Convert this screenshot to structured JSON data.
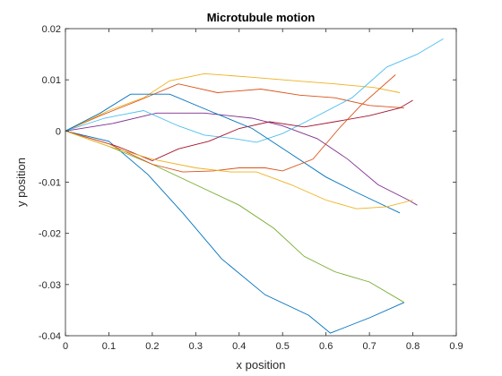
{
  "chart_data": {
    "type": "line",
    "title": "Microtubule motion",
    "xlabel": "x position",
    "ylabel": "y position",
    "xlim": [
      0,
      0.9
    ],
    "ylim": [
      -0.04,
      0.02
    ],
    "xticks": [
      "0",
      "0.1",
      "0.2",
      "0.3",
      "0.4",
      "0.5",
      "0.6",
      "0.7",
      "0.8",
      "0.9"
    ],
    "yticks": [
      "0.02",
      "0.01",
      "0",
      "-0.01",
      "-0.02",
      "-0.03",
      "-0.04"
    ],
    "xtick_values": [
      0,
      0.1,
      0.2,
      0.3,
      0.4,
      0.5,
      0.6,
      0.7,
      0.8,
      0.9
    ],
    "ytick_values": [
      0.02,
      0.01,
      0,
      -0.01,
      -0.02,
      -0.03,
      -0.04
    ],
    "grid": false,
    "series": [
      {
        "color": "#0072bd",
        "points": [
          [
            0,
            0
          ],
          [
            0.1,
            -0.002
          ],
          [
            0.19,
            -0.0085
          ],
          [
            0.27,
            -0.016
          ],
          [
            0.36,
            -0.025
          ],
          [
            0.46,
            -0.032
          ],
          [
            0.56,
            -0.036
          ],
          [
            0.61,
            -0.0395
          ],
          [
            0.7,
            -0.0365
          ],
          [
            0.78,
            -0.0335
          ]
        ]
      },
      {
        "color": "#d95319",
        "points": [
          [
            0,
            0
          ],
          [
            0.08,
            0.003
          ],
          [
            0.17,
            0.006
          ],
          [
            0.26,
            0.0092
          ],
          [
            0.35,
            0.0075
          ],
          [
            0.45,
            0.0082
          ],
          [
            0.54,
            0.007
          ],
          [
            0.62,
            0.0065
          ],
          [
            0.7,
            0.005
          ],
          [
            0.78,
            0.0045
          ]
        ]
      },
      {
        "color": "#edb120",
        "points": [
          [
            0,
            0
          ],
          [
            0.1,
            0.004
          ],
          [
            0.18,
            0.0065
          ],
          [
            0.24,
            0.0098
          ],
          [
            0.32,
            0.0112
          ],
          [
            0.43,
            0.0105
          ],
          [
            0.53,
            0.0098
          ],
          [
            0.62,
            0.0092
          ],
          [
            0.71,
            0.0085
          ],
          [
            0.77,
            0.0075
          ]
        ]
      },
      {
        "color": "#7e2f8e",
        "points": [
          [
            0,
            0
          ],
          [
            0.11,
            0.0015
          ],
          [
            0.21,
            0.0035
          ],
          [
            0.32,
            0.0035
          ],
          [
            0.43,
            0.0025
          ],
          [
            0.5,
            0.001
          ],
          [
            0.58,
            -0.0015
          ],
          [
            0.65,
            -0.0055
          ],
          [
            0.72,
            -0.0105
          ],
          [
            0.79,
            -0.0135
          ],
          [
            0.81,
            -0.0145
          ]
        ]
      },
      {
        "color": "#77ac30",
        "points": [
          [
            0,
            0
          ],
          [
            0.1,
            -0.003
          ],
          [
            0.2,
            -0.0065
          ],
          [
            0.3,
            -0.0105
          ],
          [
            0.4,
            -0.0145
          ],
          [
            0.48,
            -0.019
          ],
          [
            0.55,
            -0.0245
          ],
          [
            0.62,
            -0.0275
          ],
          [
            0.7,
            -0.0295
          ],
          [
            0.78,
            -0.0335
          ]
        ]
      },
      {
        "color": "#4dbeee",
        "points": [
          [
            0,
            0
          ],
          [
            0.09,
            0.0025
          ],
          [
            0.18,
            0.004
          ],
          [
            0.26,
            0.001
          ],
          [
            0.32,
            -0.0008
          ],
          [
            0.39,
            -0.0015
          ],
          [
            0.44,
            -0.0022
          ],
          [
            0.5,
            -0.0005
          ],
          [
            0.57,
            0.0025
          ],
          [
            0.66,
            0.0065
          ],
          [
            0.74,
            0.0125
          ],
          [
            0.81,
            0.015
          ],
          [
            0.87,
            0.018
          ]
        ]
      },
      {
        "color": "#a2142f",
        "points": [
          [
            0,
            0
          ],
          [
            0.12,
            -0.003
          ],
          [
            0.2,
            -0.0058
          ],
          [
            0.26,
            -0.0035
          ],
          [
            0.33,
            -0.002
          ],
          [
            0.4,
            0.0005
          ],
          [
            0.47,
            0.0018
          ],
          [
            0.55,
            0.0008
          ],
          [
            0.62,
            0.0018
          ],
          [
            0.7,
            0.003
          ],
          [
            0.77,
            0.0045
          ],
          [
            0.8,
            0.006
          ]
        ]
      },
      {
        "color": "#0072bd",
        "points": [
          [
            0,
            0
          ],
          [
            0.08,
            0.0035
          ],
          [
            0.15,
            0.0072
          ],
          [
            0.24,
            0.0072
          ],
          [
            0.33,
            0.004
          ],
          [
            0.43,
            0.0005
          ],
          [
            0.52,
            -0.0045
          ],
          [
            0.6,
            -0.009
          ],
          [
            0.67,
            -0.012
          ],
          [
            0.72,
            -0.014
          ],
          [
            0.77,
            -0.016
          ]
        ]
      },
      {
        "color": "#d95319",
        "points": [
          [
            0,
            0
          ],
          [
            0.1,
            -0.0025
          ],
          [
            0.2,
            -0.0065
          ],
          [
            0.27,
            -0.008
          ],
          [
            0.34,
            -0.0078
          ],
          [
            0.4,
            -0.0072
          ],
          [
            0.46,
            -0.0072
          ],
          [
            0.5,
            -0.0078
          ],
          [
            0.57,
            -0.0055
          ],
          [
            0.63,
            0.0005
          ],
          [
            0.68,
            0.005
          ],
          [
            0.76,
            0.011
          ]
        ]
      },
      {
        "color": "#edb120",
        "points": [
          [
            0,
            0
          ],
          [
            0.1,
            -0.003
          ],
          [
            0.2,
            -0.0055
          ],
          [
            0.3,
            -0.0072
          ],
          [
            0.38,
            -0.008
          ],
          [
            0.44,
            -0.008
          ],
          [
            0.52,
            -0.0105
          ],
          [
            0.6,
            -0.0135
          ],
          [
            0.67,
            -0.0152
          ],
          [
            0.74,
            -0.0148
          ],
          [
            0.8,
            -0.0135
          ]
        ]
      }
    ]
  }
}
